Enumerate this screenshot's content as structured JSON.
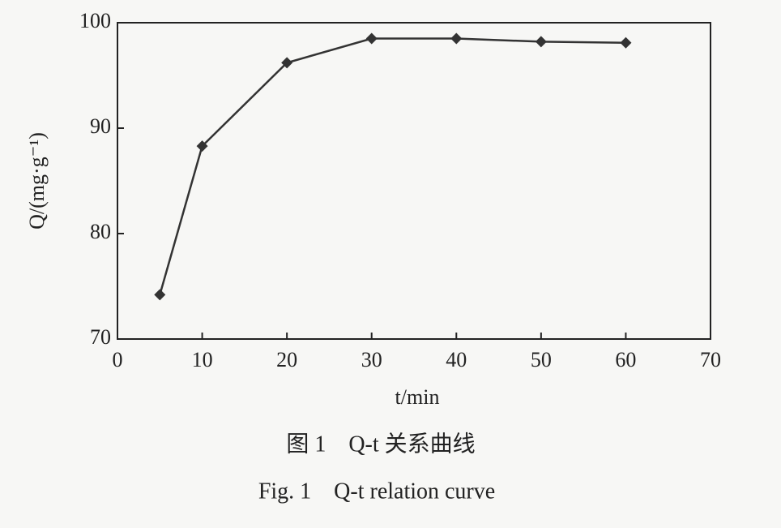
{
  "chart_data": {
    "type": "line",
    "title": "图 1　Q-t 关系曲线",
    "subtitle": "Fig. 1　Q-t relation curve",
    "x_label": "t/min",
    "y_label": "Q/(mg·g⁻¹)",
    "x": [
      5,
      10,
      20,
      30,
      40,
      50,
      60
    ],
    "series": [
      {
        "name": "Q",
        "color": "#333333",
        "values": [
          74.2,
          88.3,
          96.2,
          98.5,
          98.5,
          98.2,
          98.1
        ]
      }
    ],
    "xlim": [
      0,
      70
    ],
    "xticks": [
      0,
      10,
      20,
      30,
      40,
      50,
      60,
      70
    ],
    "ylim": [
      70,
      100
    ],
    "yticks": [
      70,
      80,
      90,
      100
    ]
  }
}
